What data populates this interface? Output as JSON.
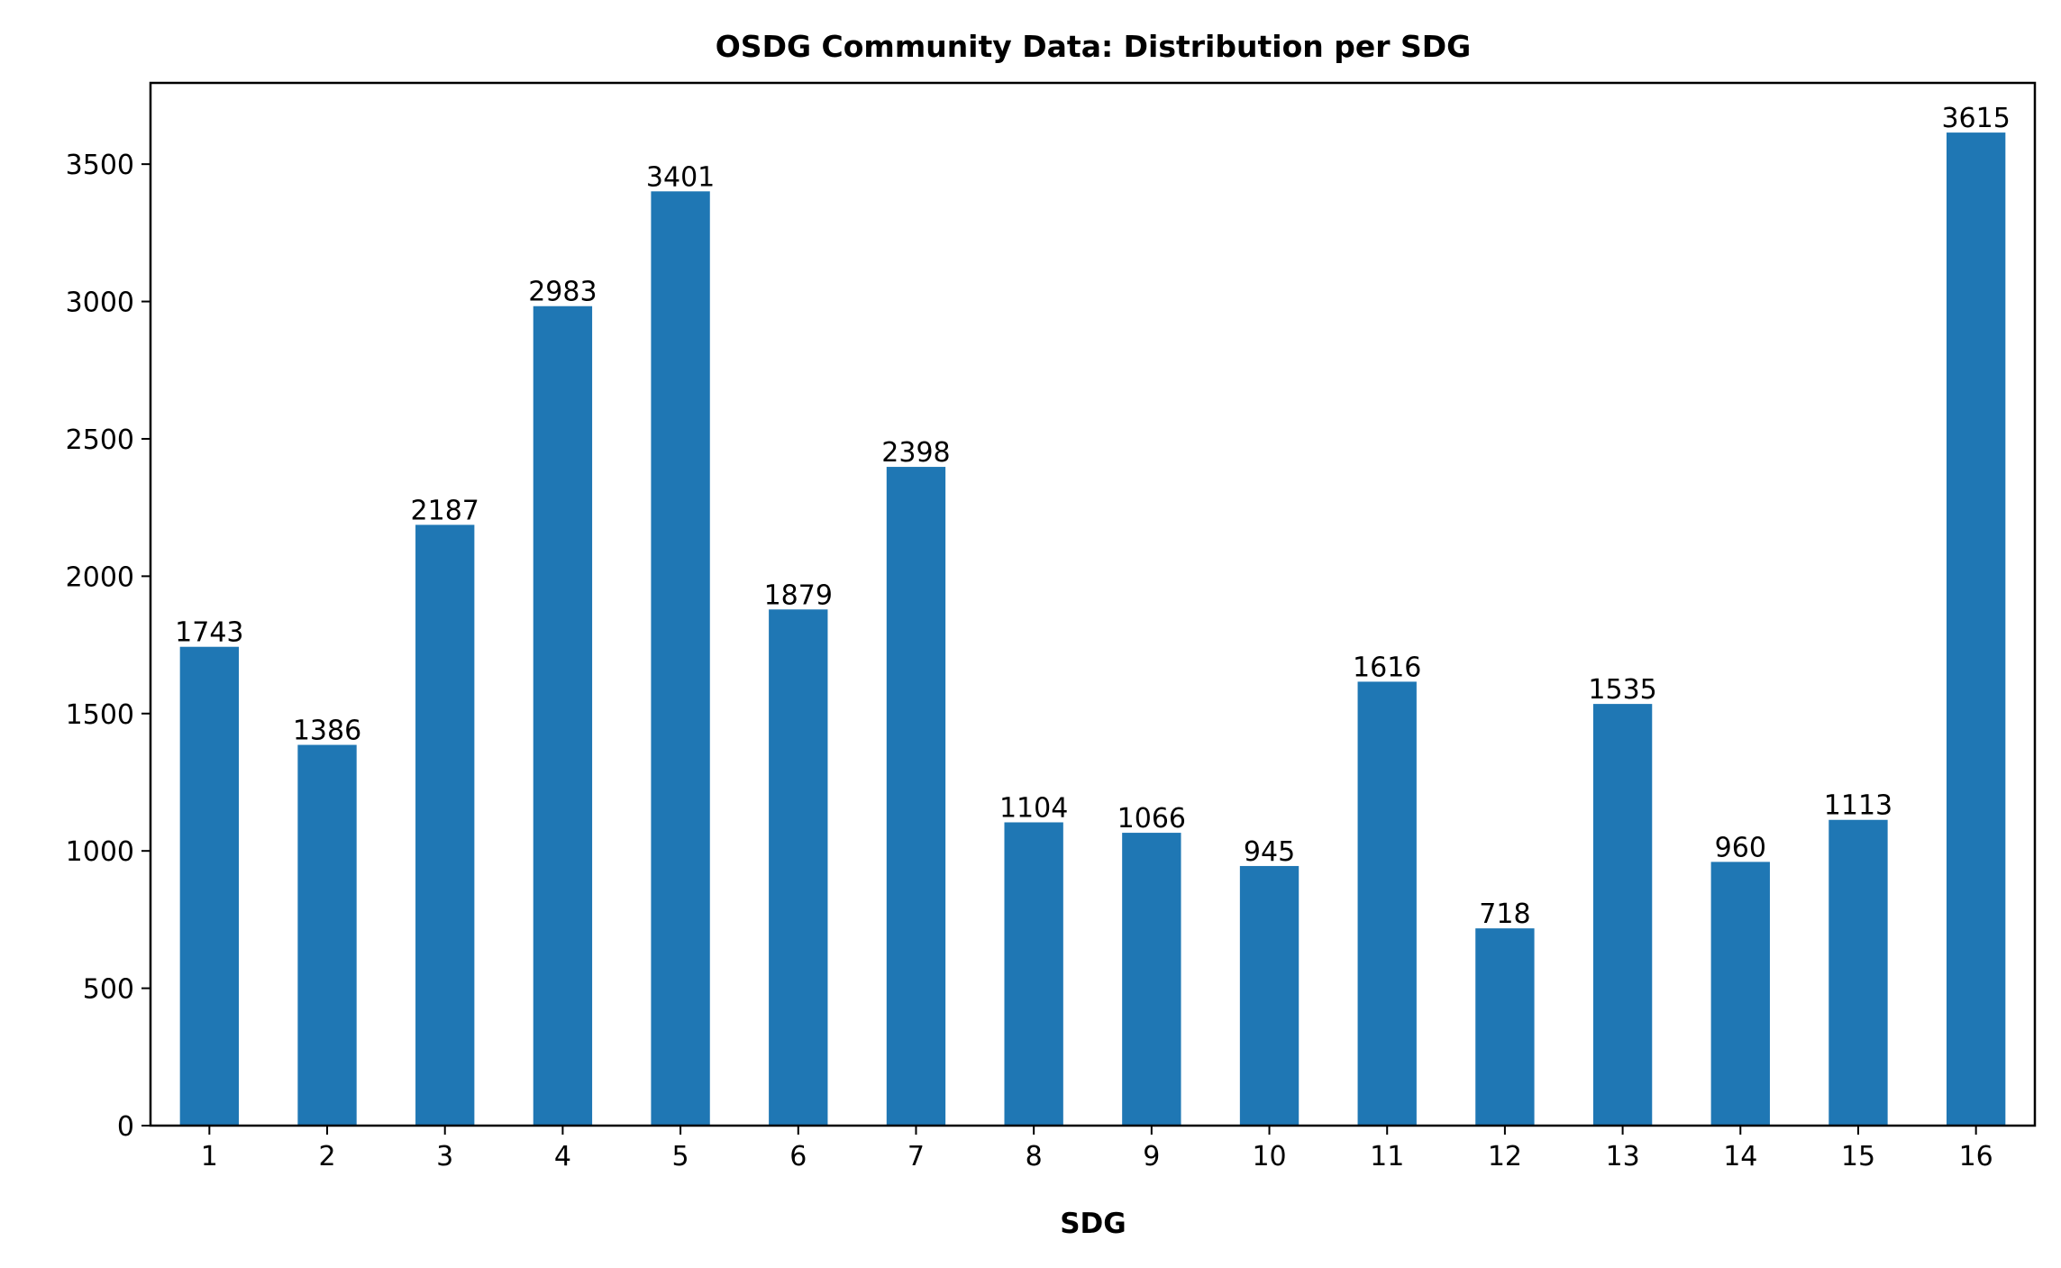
{
  "chart_data": {
    "type": "bar",
    "title": "OSDG Community Data: Distribution per SDG",
    "xlabel": "SDG",
    "ylabel": "",
    "categories": [
      "1",
      "2",
      "3",
      "4",
      "5",
      "6",
      "7",
      "8",
      "9",
      "10",
      "11",
      "12",
      "13",
      "14",
      "15",
      "16"
    ],
    "values": [
      1743,
      1386,
      2187,
      2983,
      3401,
      1879,
      2398,
      1104,
      1066,
      945,
      1616,
      718,
      1535,
      960,
      1113,
      3615
    ],
    "yticks": [
      0,
      500,
      1000,
      1500,
      2000,
      2500,
      3000,
      3500
    ],
    "ylim": [
      0,
      3795.75
    ],
    "bar_color": "#1f77b4",
    "grid": false,
    "legend": "none"
  }
}
